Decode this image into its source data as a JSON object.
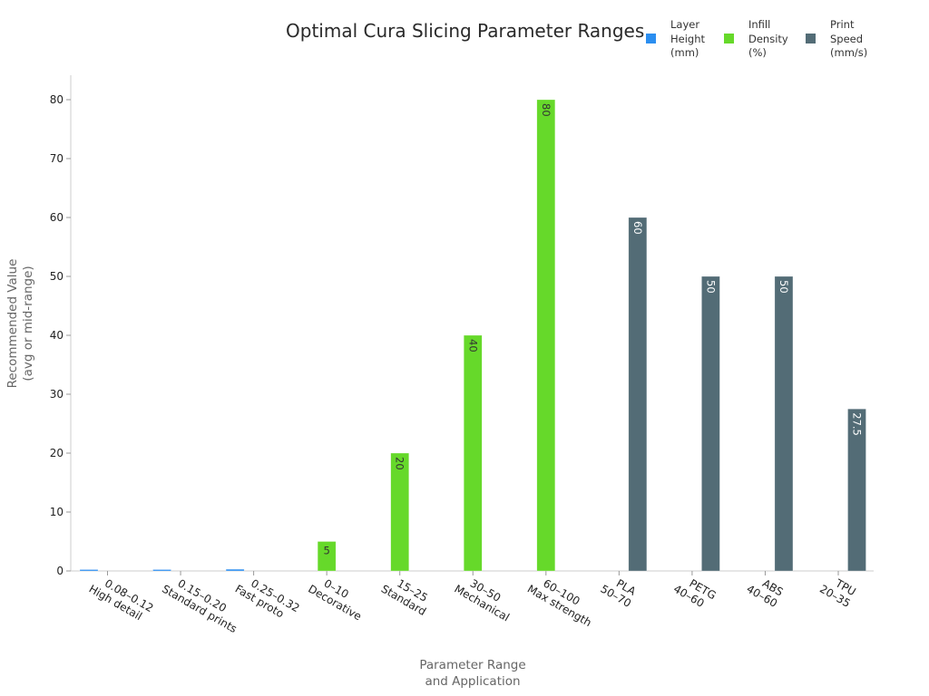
{
  "chart_data": {
    "type": "bar",
    "title": "Optimal Cura Slicing Parameter Ranges",
    "xlabel": "Parameter Range\nand Application",
    "ylabel": "Recommended Value\n(avg or mid-range)",
    "ylim": [
      0,
      84
    ],
    "yticks": [
      0,
      10,
      20,
      30,
      40,
      50,
      60,
      70,
      80
    ],
    "grid": false,
    "legend_position": "top-right",
    "categories": [
      "0.08–0.12\nHigh detail",
      "0.15–0.20\nStandard prints",
      "0.25–0.32\nFast proto",
      "0–10\nDecorative",
      "15–25\nStandard",
      "30–50\nMechanical",
      "60–100\nMax strength",
      "PLA\n50–70",
      "PETG\n40–60",
      "ABS\n40–60",
      "TPU\n20–35"
    ],
    "series": [
      {
        "name": "Layer\nHeight\n(mm)",
        "color": "#2b8ef0",
        "values": [
          0.1,
          0.175,
          0.285,
          null,
          null,
          null,
          null,
          null,
          null,
          null,
          null
        ],
        "labels": [
          "",
          "",
          "",
          "",
          "",
          "",
          "",
          "",
          "",
          "",
          ""
        ]
      },
      {
        "name": "Infill\nDensity\n(%)",
        "color": "#66d92a",
        "values": [
          null,
          null,
          null,
          5,
          20,
          40,
          80,
          null,
          null,
          null,
          null
        ],
        "labels": [
          "",
          "",
          "",
          "5",
          "20",
          "40",
          "80",
          "",
          "",
          "",
          ""
        ]
      },
      {
        "name": "Print\nSpeed\n(mm/s)",
        "color": "#536c76",
        "values": [
          null,
          null,
          null,
          null,
          null,
          null,
          null,
          60,
          50,
          50,
          27.5
        ],
        "labels": [
          "",
          "",
          "",
          "",
          "",
          "",
          "",
          "60",
          "50",
          "50",
          "27.5"
        ]
      }
    ]
  },
  "title": "Optimal Cura Slicing Parameter Ranges",
  "legend": [
    {
      "label": "Layer\nHeight\n(mm)",
      "color": "#2b8ef0"
    },
    {
      "label": "Infill\nDensity\n(%)",
      "color": "#66d92a"
    },
    {
      "label": "Print\nSpeed\n(mm/s)",
      "color": "#536c76"
    }
  ]
}
